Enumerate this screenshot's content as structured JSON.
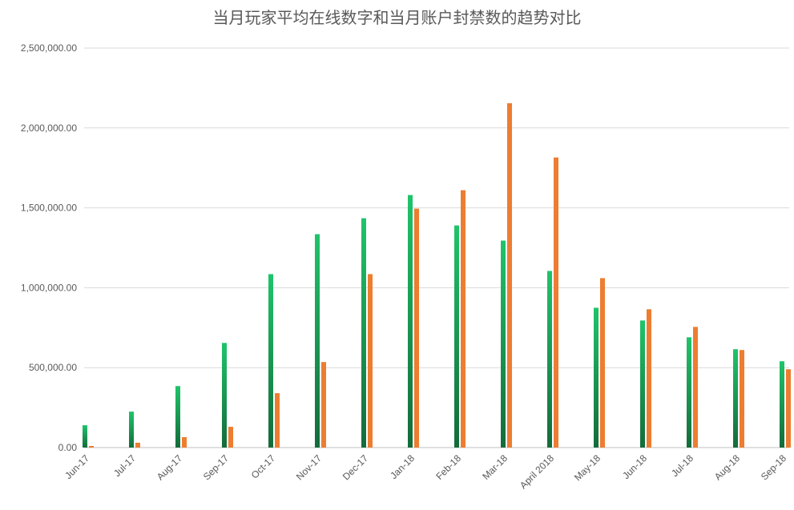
{
  "chart_data": {
    "type": "bar",
    "title": "当月玩家平均在线数字和当月账户封禁数的趋势对比",
    "xlabel": "",
    "ylabel": "",
    "ylim": [
      0,
      2500000
    ],
    "yticks": [
      "0.00",
      "500,000.00",
      "1,000,000.00",
      "1,500,000.00",
      "2,000,000.00",
      "2,500,000.00"
    ],
    "grid": true,
    "legend": "none",
    "categories": [
      "Jun-17",
      "Jul-17",
      "Aug-17",
      "Sep-17",
      "Oct-17",
      "Nov-17",
      "Dec-17",
      "Jan-18",
      "Feb-18",
      "Mar-18",
      "April 2018",
      "May-18",
      "Jun-18",
      "Jul-18",
      "Aug-18",
      "Sep-18"
    ],
    "series": [
      {
        "color": "#1fc46a",
        "color_dark": "#146b3a",
        "values": [
          140000,
          225000,
          385000,
          655000,
          1085000,
          1335000,
          1435000,
          1580000,
          1390000,
          1295000,
          1105000,
          875000,
          795000,
          690000,
          615000,
          540000
        ]
      },
      {
        "color": "#ed7d31",
        "values": [
          10000,
          30000,
          65000,
          130000,
          340000,
          535000,
          1085000,
          1495000,
          1610000,
          2155000,
          1815000,
          1060000,
          865000,
          755000,
          610000,
          490000
        ]
      }
    ]
  }
}
